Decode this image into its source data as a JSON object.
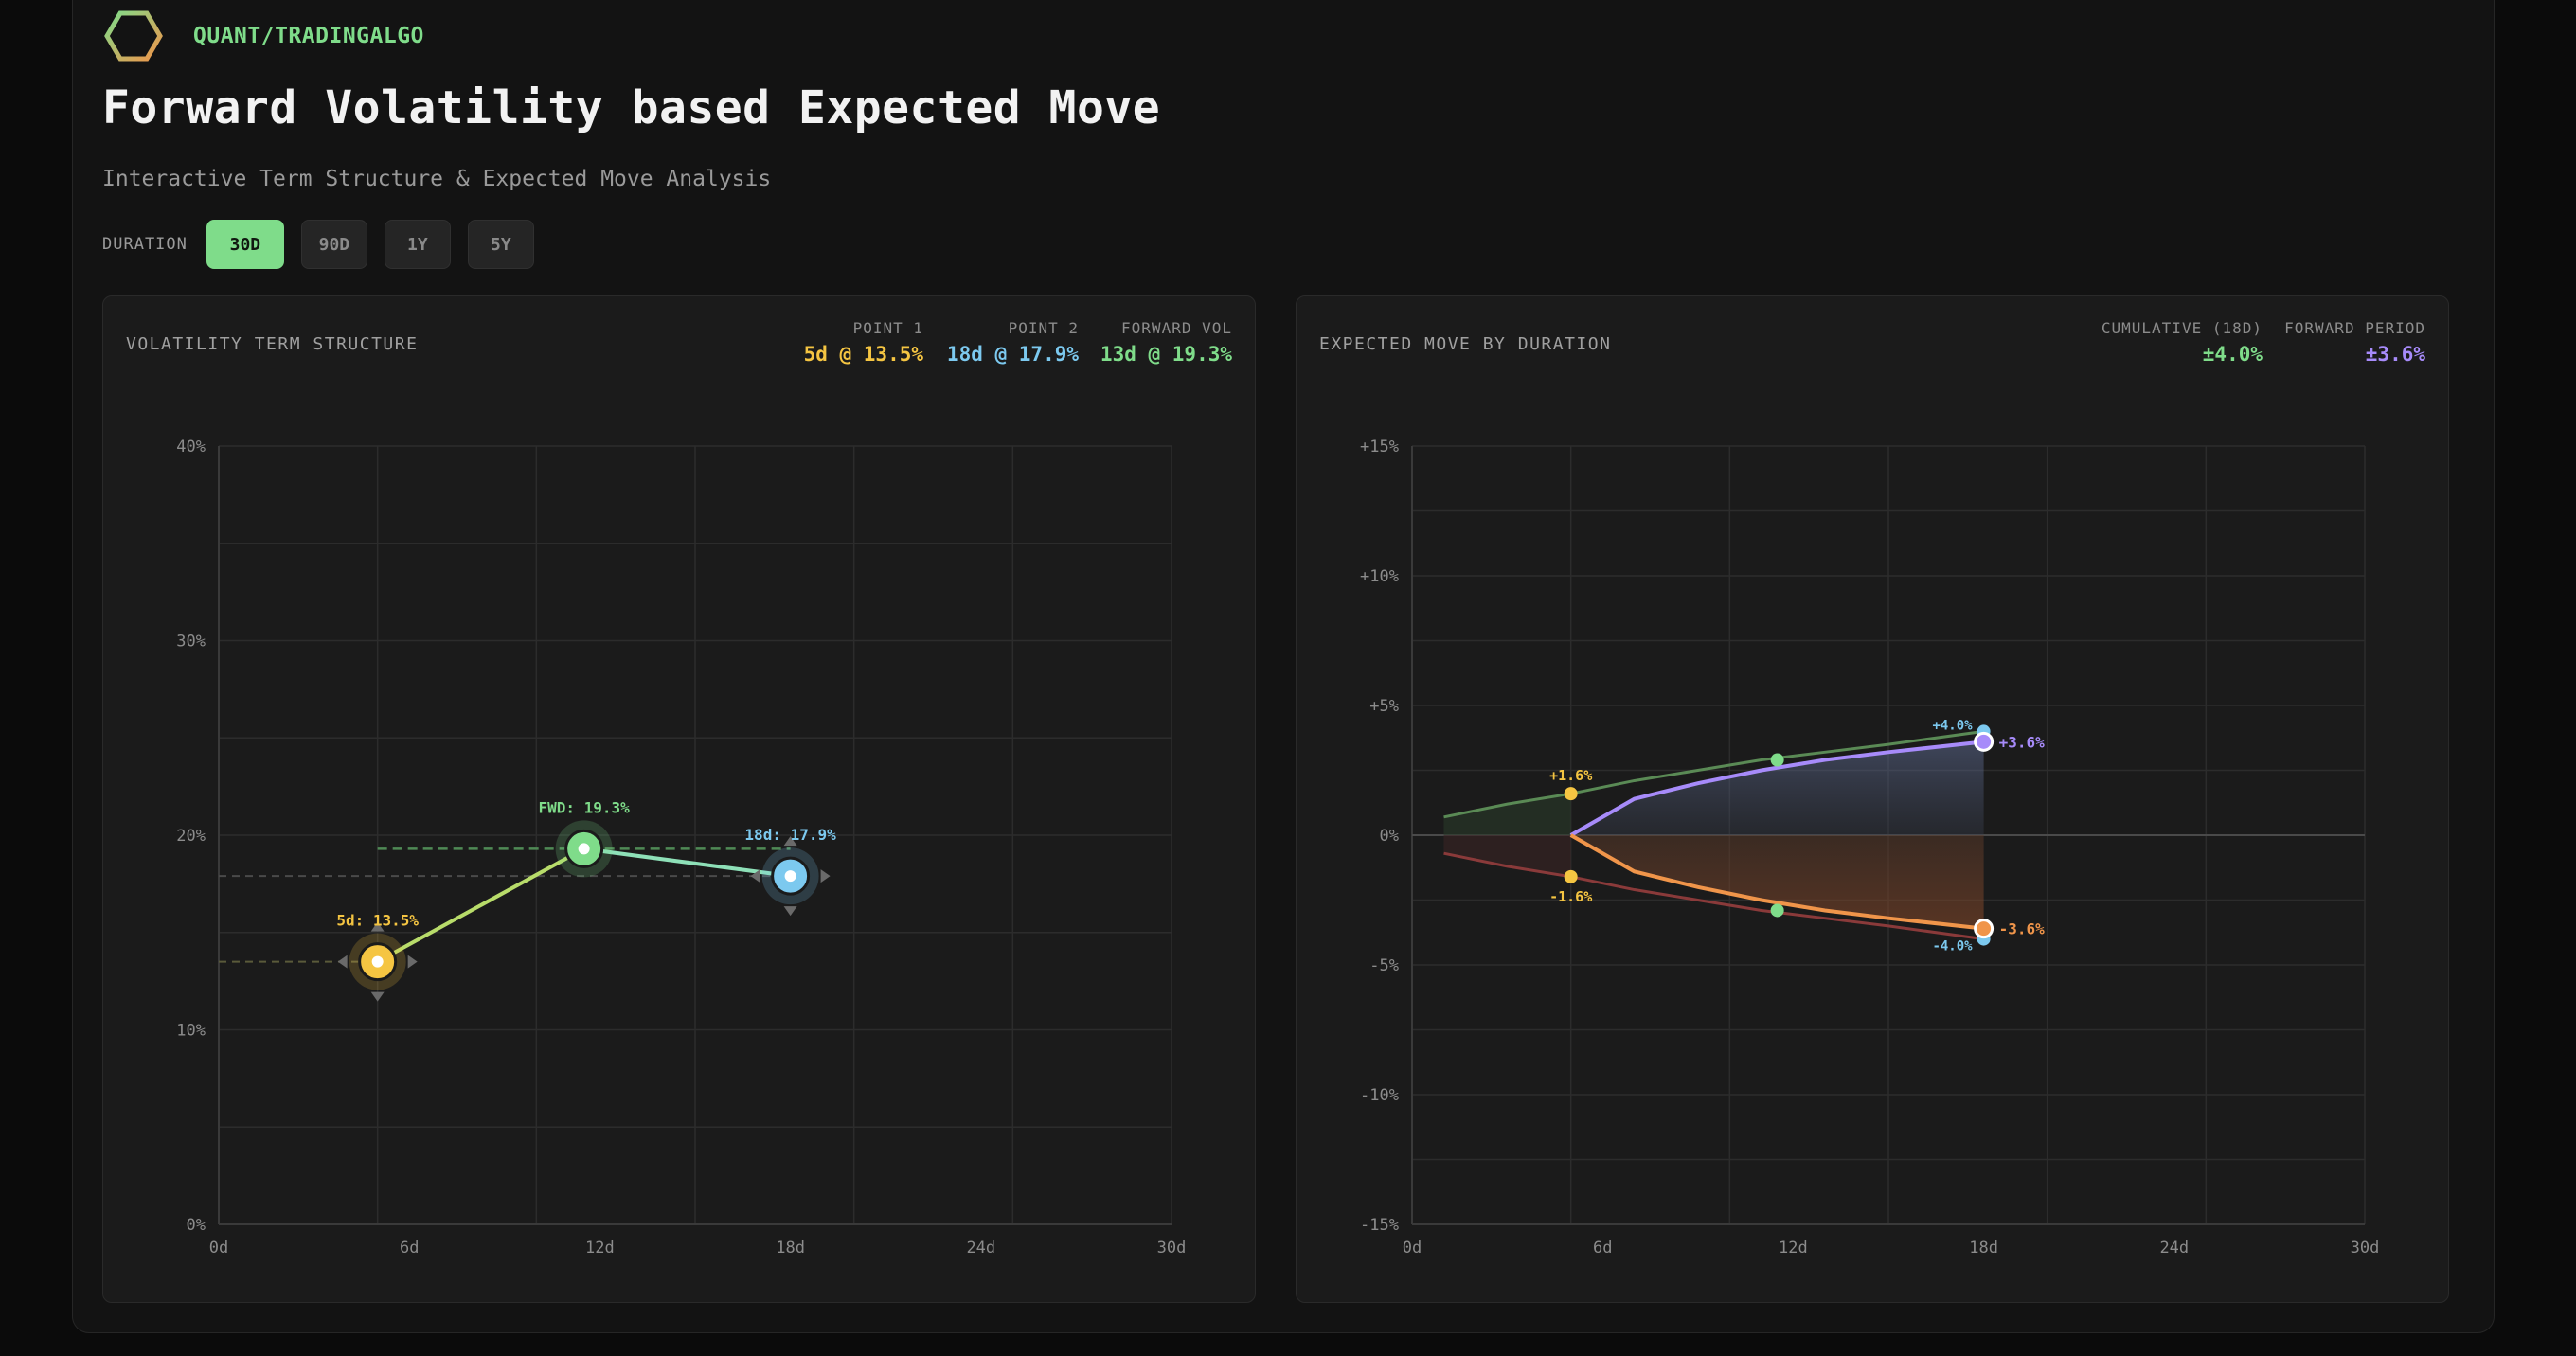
{
  "brand": {
    "name": "QUANT/TRADINGALGO"
  },
  "title": "Forward Volatility based Expected Move",
  "subtitle": "Interactive Term Structure & Expected Move Analysis",
  "duration": {
    "label": "DURATION",
    "options": [
      "30D",
      "90D",
      "1Y",
      "5Y"
    ],
    "selected": "30D"
  },
  "colors": {
    "green": "#7fdc8a",
    "yellow": "#f5c542",
    "blue": "#7cc9ef",
    "purple": "#a78bfa",
    "orange": "#f0954a"
  },
  "left_panel": {
    "title": "VOLATILITY TERM STRUCTURE",
    "stats": [
      {
        "label": "POINT 1",
        "value": "5d @ 13.5%"
      },
      {
        "label": "POINT 2",
        "value": "18d @ 17.9%"
      },
      {
        "label": "FORWARD VOL",
        "value": "13d @ 19.3%"
      }
    ]
  },
  "right_panel": {
    "title": "EXPECTED MOVE BY DURATION",
    "stats": [
      {
        "label": "CUMULATIVE (18D)",
        "value": "±4.0%"
      },
      {
        "label": "FORWARD PERIOD",
        "value": "±3.6%"
      }
    ]
  },
  "chart_data": [
    {
      "type": "line",
      "title": "VOLATILITY TERM STRUCTURE",
      "xlim": [
        0,
        30
      ],
      "ylim": [
        0,
        40
      ],
      "x_ticks": [
        "0d",
        "6d",
        "12d",
        "18d",
        "24d",
        "30d"
      ],
      "y_ticks": [
        "0%",
        "10%",
        "20%",
        "30%",
        "40%"
      ],
      "grid": true,
      "points": [
        {
          "x": 5,
          "y": 13.5,
          "label": "5d: 13.5%"
        },
        {
          "x": 11.5,
          "y": 19.3,
          "label": "FWD: 19.3%"
        },
        {
          "x": 18,
          "y": 17.9,
          "label": "18d: 17.9%"
        }
      ]
    },
    {
      "type": "area",
      "title": "EXPECTED MOVE BY DURATION",
      "xlim": [
        0,
        30
      ],
      "ylim": [
        -15,
        15
      ],
      "x_ticks": [
        "0d",
        "6d",
        "12d",
        "18d",
        "24d",
        "30d"
      ],
      "y_ticks": [
        "+15%",
        "+10%",
        "+5%",
        "0%",
        "-5%",
        "-10%",
        "-15%"
      ],
      "grid": true,
      "x": [
        1,
        3,
        5,
        7,
        9,
        11,
        13,
        15,
        18
      ],
      "series": [
        {
          "values": [
            0.7,
            1.2,
            1.6,
            2.1,
            2.5,
            2.9,
            3.2,
            3.5,
            4.0
          ]
        },
        {
          "values": [
            -0.7,
            -1.2,
            -1.6,
            -2.1,
            -2.5,
            -2.9,
            -3.2,
            -3.5,
            -4.0
          ]
        },
        {
          "x": [
            5,
            7,
            9,
            11,
            13,
            15,
            18
          ],
          "values": [
            0,
            1.4,
            2.0,
            2.5,
            2.9,
            3.2,
            3.6
          ]
        },
        {
          "x": [
            5,
            7,
            9,
            11,
            13,
            15,
            18
          ],
          "values": [
            0,
            -1.4,
            -2.0,
            -2.5,
            -2.9,
            -3.2,
            -3.6
          ]
        }
      ],
      "annotations": [
        "+1.6%",
        "-1.6%",
        "+4.0%",
        "-4.0%",
        "+3.6%",
        "-3.6%"
      ]
    }
  ]
}
